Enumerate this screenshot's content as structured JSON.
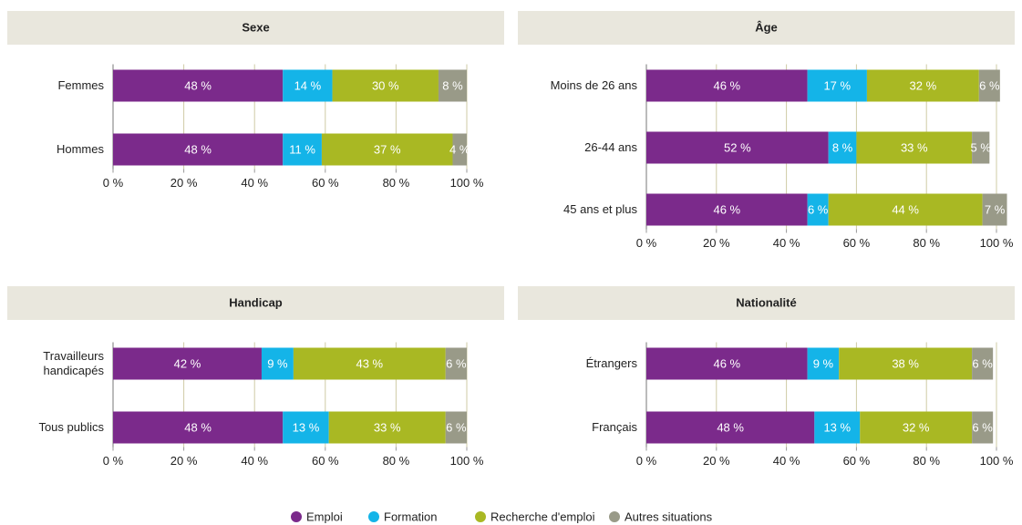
{
  "chart_data": [
    {
      "type": "bar",
      "orientation": "horizontal",
      "stacked": true,
      "title": "Sexe",
      "categories": [
        "Femmes",
        "Hommes"
      ],
      "series": [
        {
          "name": "Emploi",
          "color": "#7b2a8b",
          "values": [
            48,
            48
          ],
          "value_labels": [
            "48 %",
            "48 %"
          ]
        },
        {
          "name": "Formation",
          "color": "#14b4e8",
          "values": [
            14,
            11
          ],
          "value_labels": [
            "14 %",
            "11 %"
          ]
        },
        {
          "name": "Recherche d'emploi",
          "color": "#a9b823",
          "values": [
            30,
            37
          ],
          "value_labels": [
            "30 %",
            "37 %"
          ]
        },
        {
          "name": "Autres situations",
          "color": "#999a88",
          "values": [
            8,
            4
          ],
          "value_labels": [
            "8 %",
            "4 %"
          ]
        }
      ],
      "xlim": [
        0,
        100
      ],
      "xticks": [
        {
          "value": 0,
          "label": "0 %"
        },
        {
          "value": 20,
          "label": "20 %"
        },
        {
          "value": 40,
          "label": "40 %"
        },
        {
          "value": 60,
          "label": "60 %"
        },
        {
          "value": 80,
          "label": "80 %"
        },
        {
          "value": 100,
          "label": "100 %"
        }
      ],
      "grid": true
    },
    {
      "type": "bar",
      "orientation": "horizontal",
      "stacked": true,
      "title": "Âge",
      "categories": [
        "Moins de 26 ans",
        "26-44 ans",
        "45 ans et plus"
      ],
      "series": [
        {
          "name": "Emploi",
          "color": "#7b2a8b",
          "values": [
            46,
            52,
            46
          ],
          "value_labels": [
            "46 %",
            "52 %",
            "46 %"
          ]
        },
        {
          "name": "Formation",
          "color": "#14b4e8",
          "values": [
            17,
            8,
            6
          ],
          "value_labels": [
            "17 %",
            "8 %",
            "6 %"
          ]
        },
        {
          "name": "Recherche d'emploi",
          "color": "#a9b823",
          "values": [
            32,
            33,
            44
          ],
          "value_labels": [
            "32 %",
            "33 %",
            "44 %"
          ]
        },
        {
          "name": "Autres situations",
          "color": "#999a88",
          "values": [
            6,
            5,
            7
          ],
          "value_labels": [
            "6 %",
            "5 %",
            "7 %"
          ]
        }
      ],
      "xlim": [
        0,
        100
      ],
      "xticks": [
        {
          "value": 0,
          "label": "0 %"
        },
        {
          "value": 20,
          "label": "20 %"
        },
        {
          "value": 40,
          "label": "40 %"
        },
        {
          "value": 60,
          "label": "60 %"
        },
        {
          "value": 80,
          "label": "80 %"
        },
        {
          "value": 100,
          "label": "100 %"
        }
      ],
      "grid": true
    },
    {
      "type": "bar",
      "orientation": "horizontal",
      "stacked": true,
      "title": "Handicap",
      "categories": [
        "Travailleurs handicapés",
        "Tous publics"
      ],
      "series": [
        {
          "name": "Emploi",
          "color": "#7b2a8b",
          "values": [
            42,
            48
          ],
          "value_labels": [
            "42 %",
            "48 %"
          ]
        },
        {
          "name": "Formation",
          "color": "#14b4e8",
          "values": [
            9,
            13
          ],
          "value_labels": [
            "9 %",
            "13 %"
          ]
        },
        {
          "name": "Recherche d'emploi",
          "color": "#a9b823",
          "values": [
            43,
            33
          ],
          "value_labels": [
            "43 %",
            "33 %"
          ]
        },
        {
          "name": "Autres situations",
          "color": "#999a88",
          "values": [
            6,
            6
          ],
          "value_labels": [
            "6 %",
            "6 %"
          ]
        }
      ],
      "xlim": [
        0,
        100
      ],
      "xticks": [
        {
          "value": 0,
          "label": "0 %"
        },
        {
          "value": 20,
          "label": "20 %"
        },
        {
          "value": 40,
          "label": "40 %"
        },
        {
          "value": 60,
          "label": "60 %"
        },
        {
          "value": 80,
          "label": "80 %"
        },
        {
          "value": 100,
          "label": "100 %"
        }
      ],
      "grid": true
    },
    {
      "type": "bar",
      "orientation": "horizontal",
      "stacked": true,
      "title": "Nationalité",
      "categories": [
        "Étrangers",
        "Français"
      ],
      "series": [
        {
          "name": "Emploi",
          "color": "#7b2a8b",
          "values": [
            46,
            48
          ],
          "value_labels": [
            "46 %",
            "48 %"
          ]
        },
        {
          "name": "Formation",
          "color": "#14b4e8",
          "values": [
            9,
            13
          ],
          "value_labels": [
            "9 %",
            "13 %"
          ]
        },
        {
          "name": "Recherche d'emploi",
          "color": "#a9b823",
          "values": [
            38,
            32
          ],
          "value_labels": [
            "38 %",
            "32 %"
          ]
        },
        {
          "name": "Autres situations",
          "color": "#999a88",
          "values": [
            6,
            6
          ],
          "value_labels": [
            "6 %",
            "6 %"
          ]
        }
      ],
      "xlim": [
        0,
        100
      ],
      "xticks": [
        {
          "value": 0,
          "label": "0 %"
        },
        {
          "value": 20,
          "label": "20 %"
        },
        {
          "value": 40,
          "label": "40 %"
        },
        {
          "value": 60,
          "label": "60 %"
        },
        {
          "value": 80,
          "label": "80 %"
        },
        {
          "value": 100,
          "label": "100 %"
        }
      ],
      "grid": true
    }
  ]
}
